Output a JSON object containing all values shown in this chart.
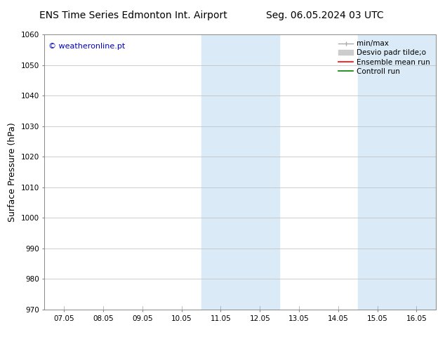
{
  "title_left": "ENS Time Series Edmonton Int. Airport",
  "title_right": "Seg. 06.05.2024 03 UTC",
  "ylabel": "Surface Pressure (hPa)",
  "ylim": [
    970,
    1060
  ],
  "yticks": [
    970,
    980,
    990,
    1000,
    1010,
    1020,
    1030,
    1040,
    1050,
    1060
  ],
  "xtick_labels": [
    "07.05",
    "08.05",
    "09.05",
    "10.05",
    "11.05",
    "12.05",
    "13.05",
    "14.05",
    "15.05",
    "16.05"
  ],
  "xtick_positions": [
    1,
    2,
    3,
    4,
    5,
    6,
    7,
    8,
    9,
    10
  ],
  "xlim_start": 0.5,
  "xlim_end": 10.5,
  "shaded_regions": [
    {
      "x_start": 4.5,
      "x_end": 5.5,
      "color": "#daeaf7"
    },
    {
      "x_start": 5.5,
      "x_end": 6.5,
      "color": "#daeaf7"
    },
    {
      "x_start": 8.5,
      "x_end": 9.5,
      "color": "#daeaf7"
    },
    {
      "x_start": 9.5,
      "x_end": 10.5,
      "color": "#daeaf7"
    }
  ],
  "watermark_text": "© weatheronline.pt",
  "watermark_color": "#0000cc",
  "background_color": "#ffffff",
  "grid_color": "#bbbbbb",
  "title_fontsize": 10,
  "tick_fontsize": 7.5,
  "ylabel_fontsize": 9,
  "legend_fontsize": 7.5
}
